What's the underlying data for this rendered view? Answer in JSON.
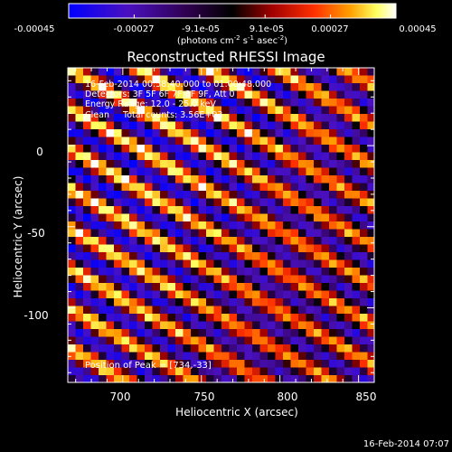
{
  "colorbar": {
    "ticks": [
      "-0.00045",
      "-0.00027",
      "-9.1e-05",
      "9.1e-05",
      "0.00027",
      "0.00045"
    ],
    "units_main": "(photons cm",
    "units_exp1": "-2",
    "units_mid": " s",
    "units_exp2": "-1",
    "units_mid2": " asec",
    "units_exp3": "-2",
    "units_close": ")"
  },
  "chart_data": {
    "type": "heatmap",
    "title": "Reconstructed RHESSI Image",
    "xlabel": "Heliocentric X (arcsec)",
    "ylabel": "Heliocentric Y (arcsec)",
    "xlim": [
      665,
      860
    ],
    "ylim": [
      -146,
      48
    ],
    "xticks": [
      "700",
      "750",
      "800",
      "850"
    ],
    "yticks": [
      "0",
      "-50",
      "-100"
    ],
    "zrange": [
      -0.00045,
      0.00045
    ],
    "colormap": [
      "#0000ff",
      "#5a1aa6",
      "#000000",
      "#b00000",
      "#ff6000",
      "#ffff80",
      "#ffffff"
    ],
    "peak": [
      734,
      -33
    ]
  },
  "info": {
    "line1": "16-Feb-2014 00:58:40.000 to 01:00:48.000",
    "line2": "Detectors: 3F 5F 6F 7F 8F 9F, Att 0",
    "line3": "Energy Range: 12.0 - 25.0 keV",
    "line4": "Clean     Total counts: 3.56E+03",
    "peak": "Position of Peak = [734,-33]"
  },
  "timestamp": "16-Feb-2014 07:07"
}
